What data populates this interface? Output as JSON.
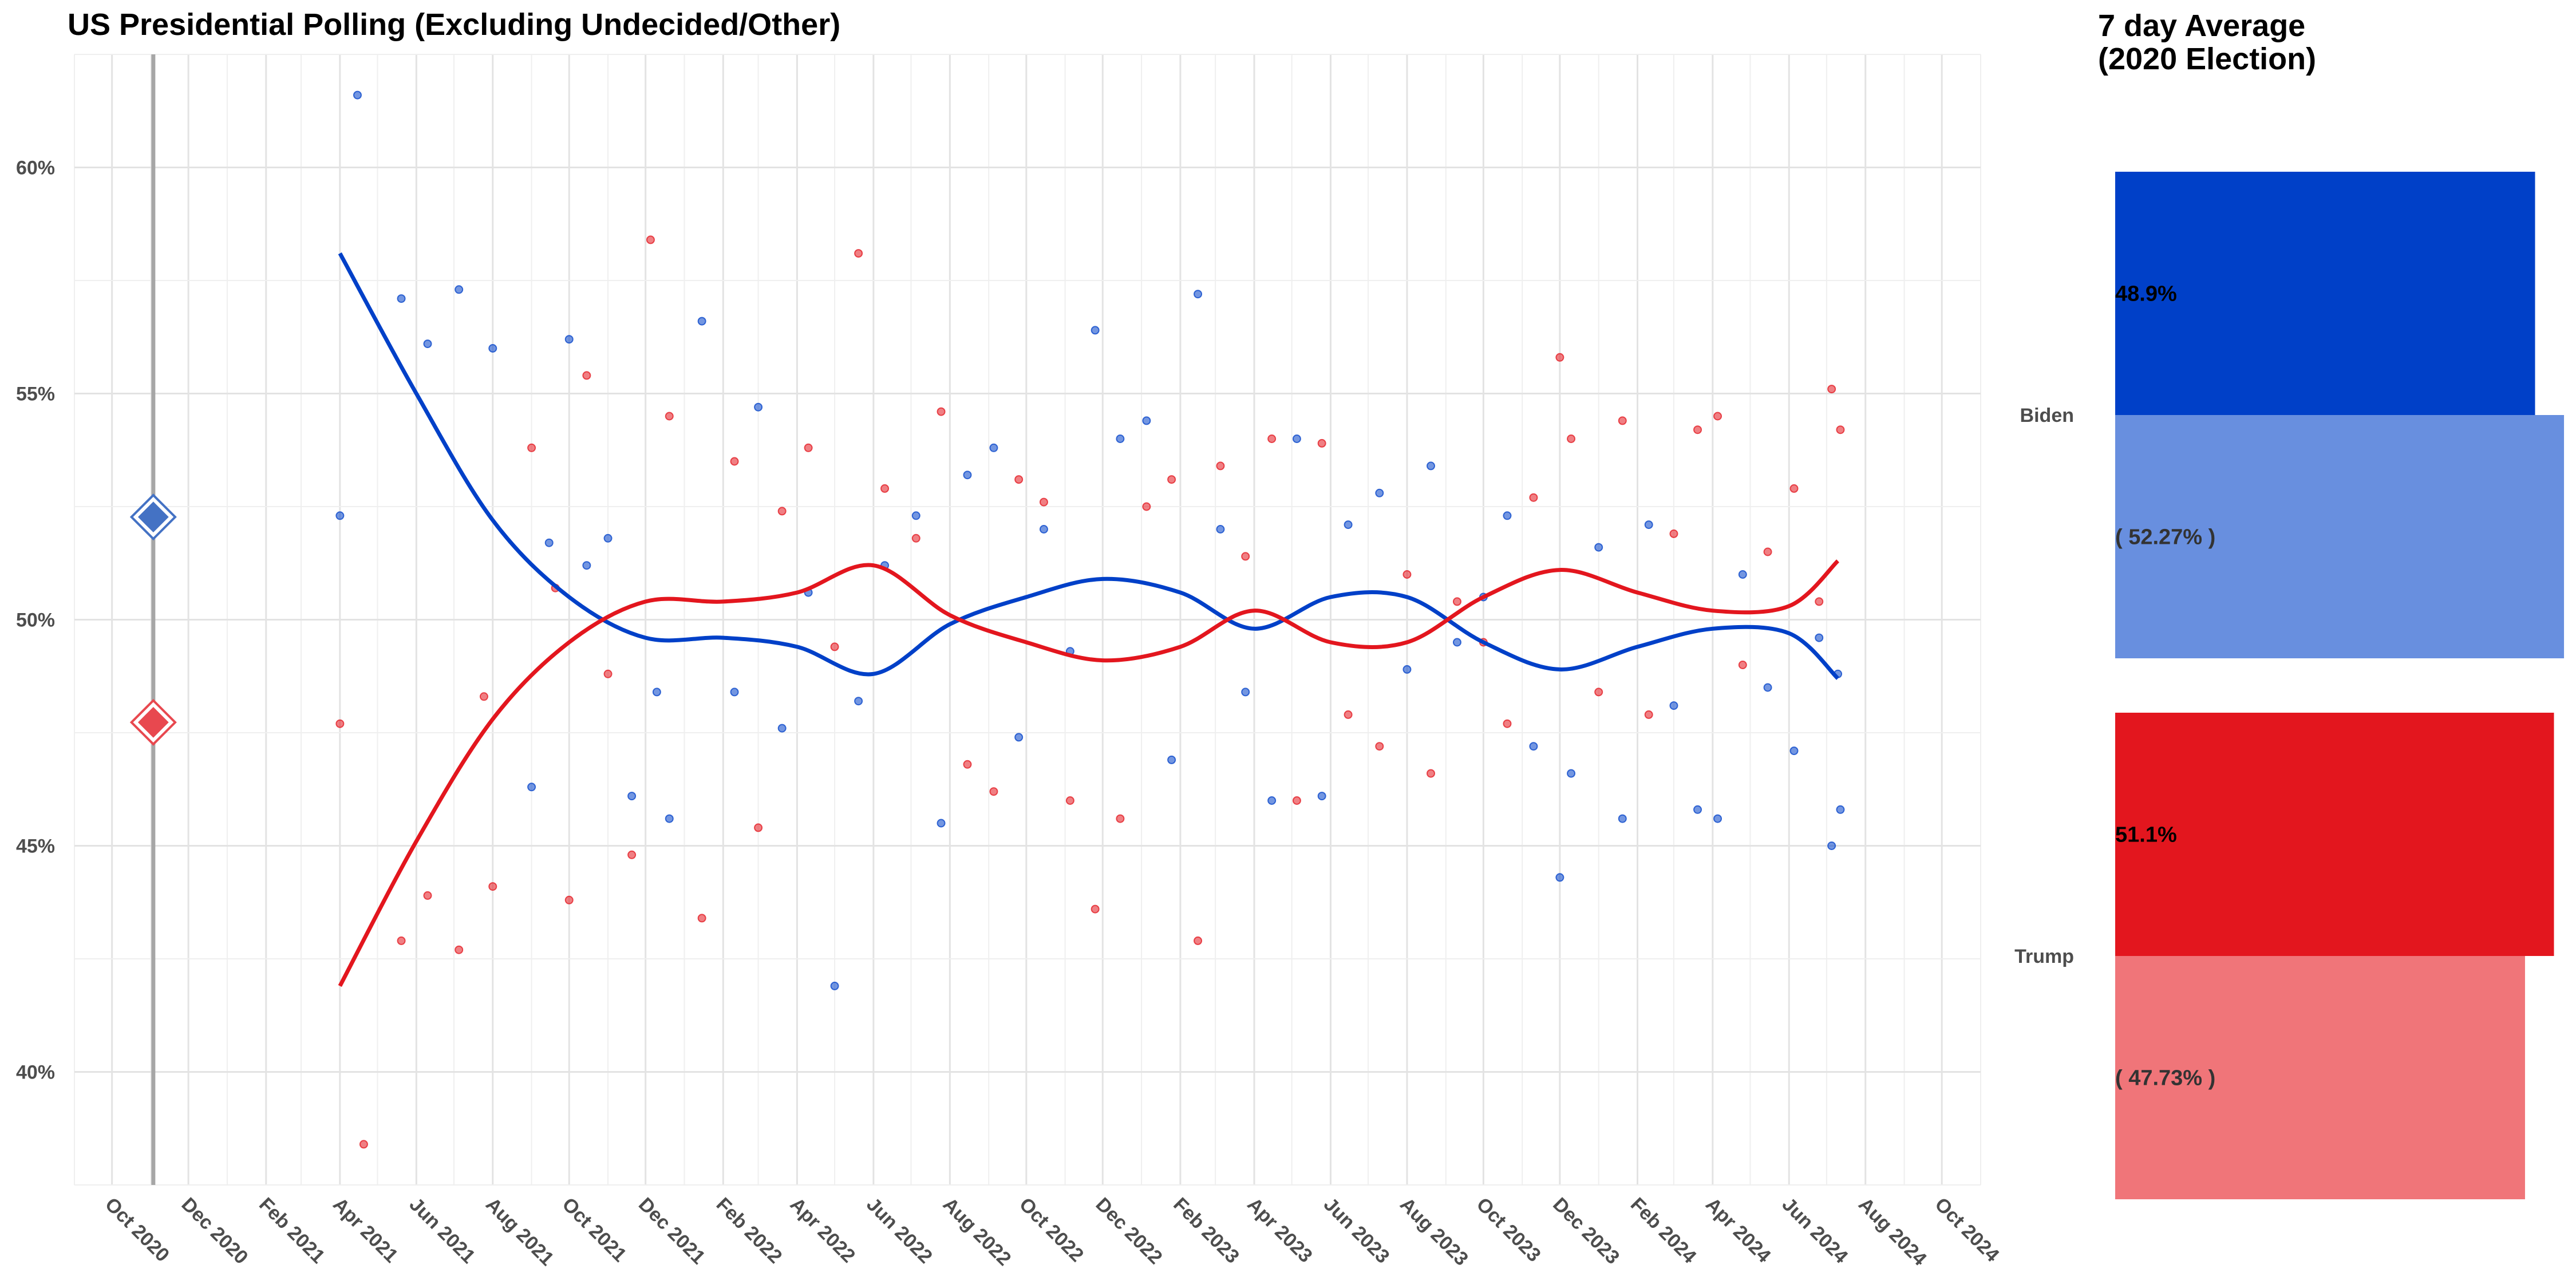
{
  "chart_data": [
    {
      "type": "scatter",
      "title": "US Presidential Polling (Excluding Undecided/Other)",
      "xlabel": "",
      "ylabel": "",
      "x_tick_labels": [
        "Oct 2020",
        "Dec 2020",
        "Feb 2021",
        "Apr 2021",
        "Jun 2021",
        "Aug 2021",
        "Oct 2021",
        "Dec 2021",
        "Feb 2022",
        "Apr 2022",
        "Jun 2022",
        "Aug 2022",
        "Oct 2022",
        "Dec 2022",
        "Feb 2023",
        "Apr 2023",
        "Jun 2023",
        "Aug 2023",
        "Oct 2023",
        "Dec 2023",
        "Feb 2024",
        "Apr 2024",
        "Jun 2024",
        "Aug 2024",
        "Oct 2024"
      ],
      "y_tick_labels": [
        "40%",
        "45%",
        "50%",
        "55%",
        "60%"
      ],
      "ylim": [
        37.5,
        62.5
      ],
      "xlim": [
        "2020-09-01",
        "2024-11-01"
      ],
      "grid": true,
      "election_line": "2020-11-03",
      "election_results": [
        {
          "name": "Biden",
          "value": 52.27,
          "color": "#4472c4"
        },
        {
          "name": "Trump",
          "value": 47.73,
          "color": "#e8484f"
        }
      ],
      "series": [
        {
          "name": "Biden",
          "color": "#0040c8",
          "smooth": [
            [
              "2021-04-01",
              58.1
            ],
            [
              "2021-06-01",
              55.0
            ],
            [
              "2021-08-01",
              52.2
            ],
            [
              "2021-10-01",
              50.5
            ],
            [
              "2021-12-01",
              49.6
            ],
            [
              "2022-02-01",
              49.6
            ],
            [
              "2022-04-01",
              49.4
            ],
            [
              "2022-06-01",
              48.8
            ],
            [
              "2022-08-01",
              49.9
            ],
            [
              "2022-10-01",
              50.5
            ],
            [
              "2022-12-01",
              50.9
            ],
            [
              "2023-02-01",
              50.6
            ],
            [
              "2023-04-01",
              49.8
            ],
            [
              "2023-06-01",
              50.5
            ],
            [
              "2023-08-01",
              50.5
            ],
            [
              "2023-10-01",
              49.5
            ],
            [
              "2023-12-01",
              48.9
            ],
            [
              "2024-02-01",
              49.4
            ],
            [
              "2024-04-01",
              49.8
            ],
            [
              "2024-06-01",
              49.7
            ],
            [
              "2024-07-10",
              48.7
            ]
          ],
          "points": [
            [
              "2021-04-01",
              52.3
            ],
            [
              "2021-04-15",
              61.6
            ],
            [
              "2021-05-20",
              57.1
            ],
            [
              "2021-06-10",
              56.1
            ],
            [
              "2021-07-05",
              57.3
            ],
            [
              "2021-08-01",
              56.0
            ],
            [
              "2021-09-01",
              46.3
            ],
            [
              "2021-09-15",
              51.7
            ],
            [
              "2021-10-01",
              56.2
            ],
            [
              "2021-10-15",
              51.2
            ],
            [
              "2021-11-01",
              51.8
            ],
            [
              "2021-11-20",
              46.1
            ],
            [
              "2021-12-10",
              48.4
            ],
            [
              "2021-12-20",
              45.6
            ],
            [
              "2022-01-15",
              56.6
            ],
            [
              "2022-02-10",
              48.4
            ],
            [
              "2022-03-01",
              54.7
            ],
            [
              "2022-03-20",
              47.6
            ],
            [
              "2022-04-10",
              50.6
            ],
            [
              "2022-05-01",
              41.9
            ],
            [
              "2022-05-20",
              48.2
            ],
            [
              "2022-06-10",
              51.2
            ],
            [
              "2022-07-05",
              52.3
            ],
            [
              "2022-07-25",
              45.5
            ],
            [
              "2022-08-15",
              53.2
            ],
            [
              "2022-09-05",
              53.8
            ],
            [
              "2022-09-25",
              47.4
            ],
            [
              "2022-10-15",
              52.0
            ],
            [
              "2022-11-05",
              49.3
            ],
            [
              "2022-11-25",
              56.4
            ],
            [
              "2022-12-15",
              54.0
            ],
            [
              "2023-01-05",
              54.4
            ],
            [
              "2023-01-25",
              46.9
            ],
            [
              "2023-02-15",
              57.2
            ],
            [
              "2023-03-05",
              52.0
            ],
            [
              "2023-03-25",
              48.4
            ],
            [
              "2023-04-15",
              46.0
            ],
            [
              "2023-05-05",
              54.0
            ],
            [
              "2023-05-25",
              46.1
            ],
            [
              "2023-06-15",
              52.1
            ],
            [
              "2023-07-10",
              52.8
            ],
            [
              "2023-08-01",
              48.9
            ],
            [
              "2023-08-20",
              53.4
            ],
            [
              "2023-09-10",
              49.5
            ],
            [
              "2023-10-01",
              50.5
            ],
            [
              "2023-10-20",
              52.3
            ],
            [
              "2023-11-10",
              47.2
            ],
            [
              "2023-12-01",
              44.3
            ],
            [
              "2023-12-10",
              46.6
            ],
            [
              "2024-01-01",
              51.6
            ],
            [
              "2024-01-20",
              45.6
            ],
            [
              "2024-02-10",
              52.1
            ],
            [
              "2024-03-01",
              48.1
            ],
            [
              "2024-03-20",
              45.8
            ],
            [
              "2024-04-05",
              45.6
            ],
            [
              "2024-04-25",
              51.0
            ],
            [
              "2024-05-15",
              48.5
            ],
            [
              "2024-06-05",
              47.1
            ],
            [
              "2024-06-25",
              49.6
            ],
            [
              "2024-07-05",
              45.0
            ],
            [
              "2024-07-12",
              45.8
            ],
            [
              "2024-07-10",
              48.8
            ]
          ]
        },
        {
          "name": "Trump",
          "color": "#e3161e",
          "smooth": [
            [
              "2021-04-01",
              41.9
            ],
            [
              "2021-06-01",
              45.1
            ],
            [
              "2021-08-01",
              47.8
            ],
            [
              "2021-10-01",
              49.5
            ],
            [
              "2021-12-01",
              50.4
            ],
            [
              "2022-02-01",
              50.4
            ],
            [
              "2022-04-01",
              50.6
            ],
            [
              "2022-06-01",
              51.2
            ],
            [
              "2022-08-01",
              50.1
            ],
            [
              "2022-10-01",
              49.5
            ],
            [
              "2022-12-01",
              49.1
            ],
            [
              "2023-02-01",
              49.4
            ],
            [
              "2023-04-01",
              50.2
            ],
            [
              "2023-06-01",
              49.5
            ],
            [
              "2023-08-01",
              49.5
            ],
            [
              "2023-10-01",
              50.5
            ],
            [
              "2023-12-01",
              51.1
            ],
            [
              "2024-02-01",
              50.6
            ],
            [
              "2024-04-01",
              50.2
            ],
            [
              "2024-06-01",
              50.3
            ],
            [
              "2024-07-10",
              51.3
            ]
          ],
          "points": [
            [
              "2021-04-01",
              47.7
            ],
            [
              "2021-04-20",
              38.4
            ],
            [
              "2021-05-20",
              42.9
            ],
            [
              "2021-06-10",
              43.9
            ],
            [
              "2021-07-05",
              42.7
            ],
            [
              "2021-07-25",
              48.3
            ],
            [
              "2021-08-01",
              44.1
            ],
            [
              "2021-09-01",
              53.8
            ],
            [
              "2021-09-20",
              50.7
            ],
            [
              "2021-10-01",
              43.8
            ],
            [
              "2021-10-15",
              55.4
            ],
            [
              "2021-11-01",
              48.8
            ],
            [
              "2021-11-20",
              44.8
            ],
            [
              "2021-12-05",
              58.4
            ],
            [
              "2021-12-20",
              54.5
            ],
            [
              "2022-01-15",
              43.4
            ],
            [
              "2022-02-10",
              53.5
            ],
            [
              "2022-03-01",
              45.4
            ],
            [
              "2022-03-20",
              52.4
            ],
            [
              "2022-04-10",
              53.8
            ],
            [
              "2022-05-01",
              49.4
            ],
            [
              "2022-05-20",
              58.1
            ],
            [
              "2022-06-10",
              52.9
            ],
            [
              "2022-07-05",
              51.8
            ],
            [
              "2022-07-25",
              54.6
            ],
            [
              "2022-08-15",
              46.8
            ],
            [
              "2022-09-05",
              46.2
            ],
            [
              "2022-09-25",
              53.1
            ],
            [
              "2022-10-15",
              52.6
            ],
            [
              "2022-11-05",
              46.0
            ],
            [
              "2022-11-25",
              43.6
            ],
            [
              "2022-12-15",
              45.6
            ],
            [
              "2023-01-05",
              52.5
            ],
            [
              "2023-01-25",
              53.1
            ],
            [
              "2023-02-15",
              42.9
            ],
            [
              "2023-03-05",
              53.4
            ],
            [
              "2023-03-25",
              51.4
            ],
            [
              "2023-04-15",
              54.0
            ],
            [
              "2023-05-05",
              46.0
            ],
            [
              "2023-05-25",
              53.9
            ],
            [
              "2023-06-15",
              47.9
            ],
            [
              "2023-07-10",
              47.2
            ],
            [
              "2023-08-01",
              51.0
            ],
            [
              "2023-08-20",
              46.6
            ],
            [
              "2023-09-10",
              50.4
            ],
            [
              "2023-10-01",
              49.5
            ],
            [
              "2023-10-20",
              47.7
            ],
            [
              "2023-11-10",
              52.7
            ],
            [
              "2023-12-01",
              55.8
            ],
            [
              "2023-12-10",
              54.0
            ],
            [
              "2024-01-01",
              48.4
            ],
            [
              "2024-01-20",
              54.4
            ],
            [
              "2024-02-10",
              47.9
            ],
            [
              "2024-03-01",
              51.9
            ],
            [
              "2024-03-20",
              54.2
            ],
            [
              "2024-04-05",
              54.5
            ],
            [
              "2024-04-25",
              49.0
            ],
            [
              "2024-05-15",
              51.5
            ],
            [
              "2024-06-05",
              52.9
            ],
            [
              "2024-06-25",
              50.4
            ],
            [
              "2024-07-05",
              55.1
            ],
            [
              "2024-07-12",
              54.2
            ]
          ]
        }
      ]
    },
    {
      "type": "bar",
      "title": "7 day Average (2020 Election)",
      "title_lines": [
        "7 day Average",
        "(2020 Election)"
      ],
      "categories": [
        "Biden",
        "Trump"
      ],
      "series": [
        {
          "name": "7 day Average",
          "values": [
            48.9,
            51.1
          ],
          "labels": [
            "48.9%",
            "51.1%"
          ],
          "colors": [
            "#0040c8",
            "#e3161e"
          ]
        },
        {
          "name": "2020 Election",
          "values": [
            52.27,
            47.73
          ],
          "labels": [
            "( 52.27% )",
            "( 47.73% )"
          ],
          "colors": [
            "#688fdf",
            "#f07579"
          ]
        }
      ]
    }
  ]
}
